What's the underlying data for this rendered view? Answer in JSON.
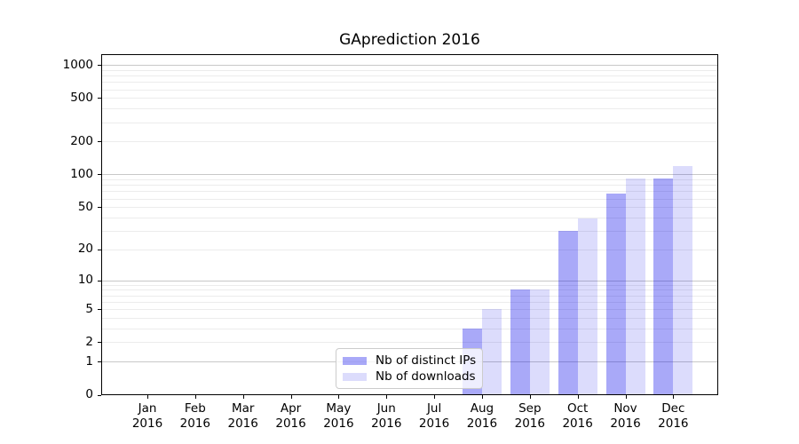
{
  "title": "GAprediction 2016",
  "chart_data": {
    "type": "bar",
    "title": "GAprediction 2016",
    "categories": [
      "Jan",
      "Feb",
      "Mar",
      "Apr",
      "May",
      "Jun",
      "Jul",
      "Aug",
      "Sep",
      "Oct",
      "Nov",
      "Dec"
    ],
    "year_label": "2016",
    "series": [
      {
        "name": "Nb of distinct IPs",
        "values": [
          0,
          0,
          0,
          0,
          0,
          0,
          0,
          3,
          8,
          30,
          66,
          91
        ],
        "color": "#0a0aeb",
        "alpha": 0.35
      },
      {
        "name": "Nb of downloads",
        "values": [
          0,
          0,
          0,
          0,
          0,
          0,
          0,
          5,
          8,
          39,
          92,
          120
        ],
        "color": "#0a0aeb",
        "alpha": 0.14
      }
    ],
    "y_scale": "log1p",
    "y_ticks": [
      0,
      1,
      2,
      5,
      10,
      20,
      50,
      100,
      200,
      500,
      1000
    ],
    "major_gridlines": [
      1,
      10,
      100,
      1000
    ],
    "ylim": [
      0,
      1230
    ],
    "xlabel": "",
    "ylabel": "",
    "grid": "both",
    "legend_position": "lower center-left inside plot"
  },
  "colors": {
    "grid_major": "#c8c8c8",
    "grid_minor": "#ececec",
    "axis": "#000000",
    "legend_border": "#cccccc",
    "background": "#ffffff"
  }
}
